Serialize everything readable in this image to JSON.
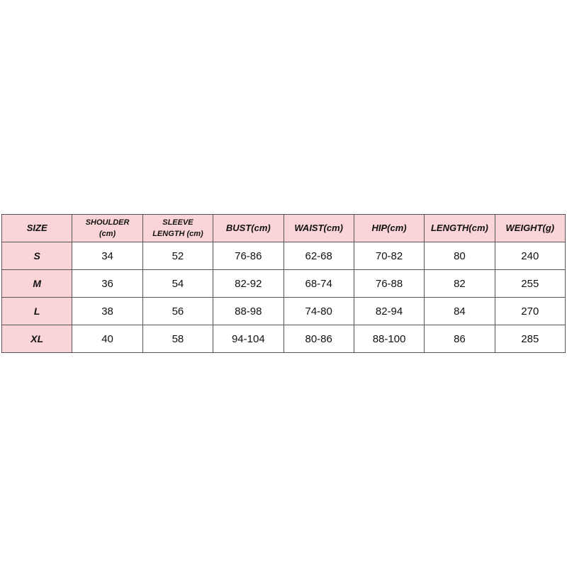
{
  "table": {
    "header": [
      "SIZE",
      "SHOULDER\n(cm)",
      "SLEEVE\nLENGTH (cm)",
      "BUST(cm)",
      "WAIST(cm)",
      "HIP(cm)",
      "LENGTH(cm)",
      "WEIGHT(g)"
    ],
    "rows": [
      [
        "S",
        "34",
        "52",
        "76-86",
        "62-68",
        "70-82",
        "80",
        "240"
      ],
      [
        "M",
        "36",
        "54",
        "82-92",
        "68-74",
        "76-88",
        "82",
        "255"
      ],
      [
        "L",
        "38",
        "56",
        "88-98",
        "74-80",
        "82-94",
        "84",
        "270"
      ],
      [
        "XL",
        "40",
        "58",
        "94-104",
        "80-86",
        "88-100",
        "86",
        "285"
      ]
    ]
  }
}
